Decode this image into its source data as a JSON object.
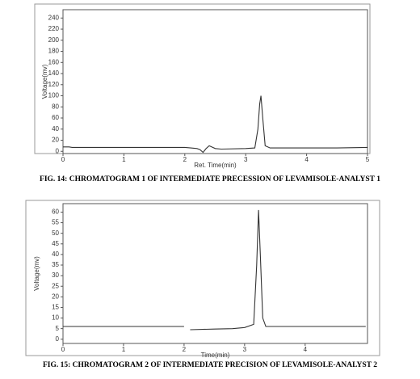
{
  "chart_data": [
    {
      "type": "line",
      "caption": "FIG. 14: CHROMATOGRAM 1 OF INTERMEDIATE PRECESSION OF LEVAMISOLE-ANALYST 1",
      "x_label": "Ret. Time(min)",
      "y_label": "Voltage(mv)",
      "x": [
        0,
        0.1,
        0.15,
        0.5,
        1,
        1.5,
        2,
        2.1,
        2.2,
        2.25,
        2.3,
        2.35,
        2.4,
        2.5,
        2.6,
        3,
        3.15,
        3.2,
        3.23,
        3.25,
        3.28,
        3.32,
        3.4,
        4,
        4.5,
        5
      ],
      "values": [
        8,
        8,
        7,
        7,
        7,
        7,
        7,
        6,
        5,
        3,
        -2,
        5,
        10,
        5,
        4,
        5,
        6,
        40,
        85,
        100,
        60,
        10,
        6,
        6,
        6,
        7
      ],
      "color": "#333333",
      "xlim": [
        0,
        5
      ],
      "ylim": [
        -4,
        255
      ],
      "xticks": [
        0,
        1,
        2,
        3,
        4,
        5
      ],
      "yticks": [
        0,
        20,
        40,
        60,
        80,
        100,
        120,
        140,
        160,
        180,
        200,
        220,
        240
      ]
    },
    {
      "type": "line",
      "caption": "FIG. 15: CHROMATOGRAM 2 OF INTERMEDIATE PRECISION OF LEVAMISOLE-ANALYST 2",
      "x_label": "Time(min)",
      "y_label": "Voltage(mv)",
      "x": [
        0,
        0.5,
        1,
        1.5,
        2,
        2.05,
        2.1,
        2.5,
        2.8,
        3.0,
        3.15,
        3.2,
        3.23,
        3.26,
        3.3,
        3.35,
        3.5,
        4,
        4.5,
        5
      ],
      "values": [
        6,
        6,
        6,
        6,
        6,
        null,
        4.5,
        4.8,
        5,
        5.5,
        7,
        35,
        61,
        40,
        10,
        6,
        6,
        6,
        6,
        6
      ],
      "color": "#333333",
      "xlim": [
        0,
        5.03
      ],
      "ylim": [
        -2,
        64
      ],
      "xticks": [
        0,
        1,
        2,
        3,
        4
      ],
      "yticks": [
        0,
        5,
        10,
        15,
        20,
        25,
        30,
        35,
        40,
        45,
        50,
        55,
        60
      ]
    }
  ]
}
